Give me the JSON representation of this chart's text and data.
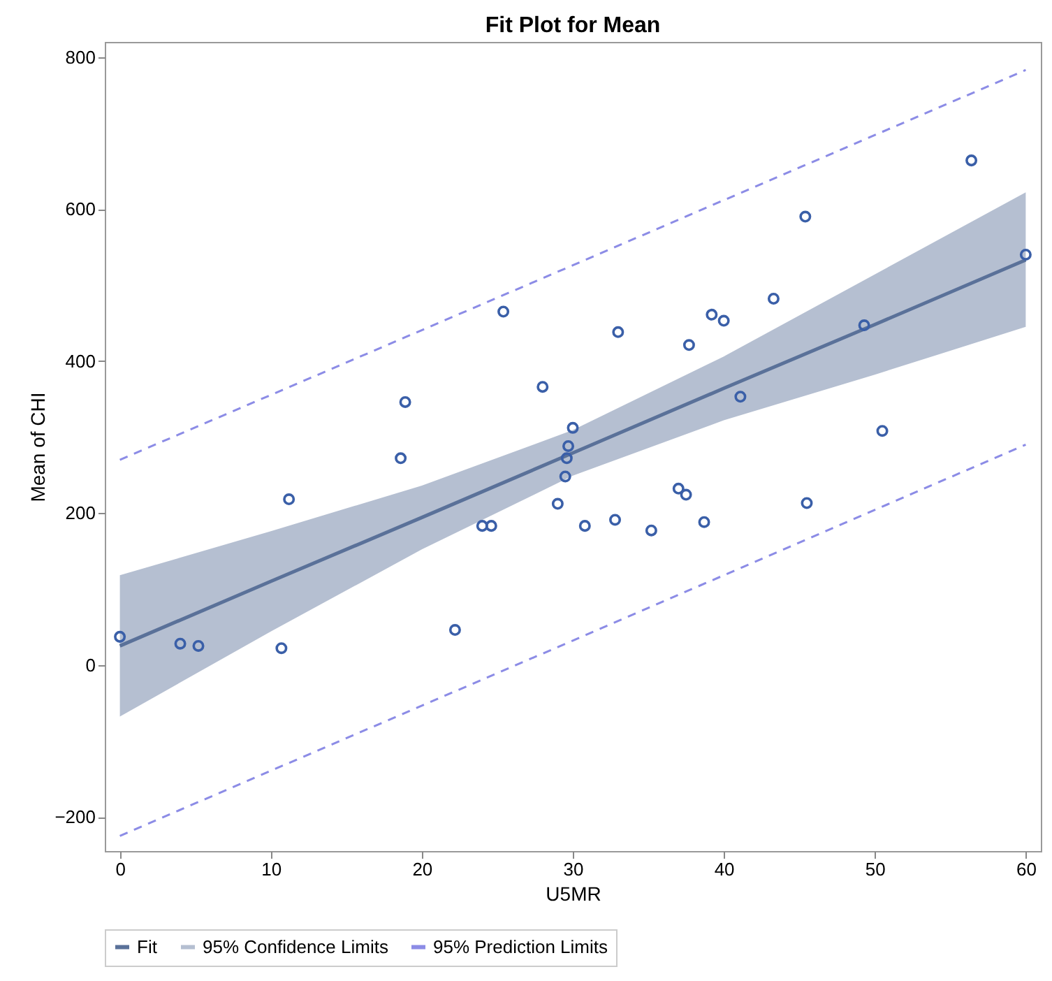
{
  "chart_data": {
    "type": "scatter",
    "title": "Fit Plot for Mean",
    "xlabel": "U5MR",
    "ylabel": "Mean of CHI",
    "xlim": [
      -1,
      61
    ],
    "ylim": [
      -245,
      820
    ],
    "xticks": [
      0,
      10,
      20,
      30,
      40,
      50,
      60
    ],
    "yticks": [
      -200,
      0,
      200,
      400,
      600,
      800
    ],
    "grid": false,
    "legend": "bottom",
    "marker": "circle",
    "annotations": [
      "95% Confidence Limits"
    ],
    "series": [
      {
        "name": "Fit",
        "type": "line",
        "line_style": "solid",
        "marker": "none",
        "color": "#5a7199",
        "x": [
          0,
          10,
          20,
          30,
          40,
          50,
          60
        ],
        "values": [
          25,
          110,
          194,
          279,
          364,
          448,
          533
        ],
        "lower": [
          -68,
          44,
          152,
          249,
          322,
          382,
          445
        ],
        "upper": [
          118,
          176,
          236,
          309,
          406,
          514,
          622
        ]
      },
      {
        "name": "95% Prediction Limits",
        "type": "line",
        "line_style": "dashed",
        "marker": "none",
        "color": "#8c8ce6",
        "x": [
          0,
          30,
          60
        ],
        "values": [
          270,
          526,
          783
        ]
      },
      {
        "type": "line",
        "line_style": "dashed",
        "marker": "none",
        "color": "#8c8ce6",
        "x": [
          0,
          30,
          60
        ],
        "values": [
          -225,
          32,
          290
        ]
      },
      {
        "color": "#3a5fa8",
        "x": [
          0,
          4,
          5.2,
          10.7,
          11.2,
          18.6,
          18.9,
          22.2,
          24,
          24.6,
          25.4,
          28,
          29,
          29.5,
          29.6,
          29.7,
          30,
          30.8,
          32.8,
          33,
          35.2,
          37,
          37.5,
          37.7,
          38.7,
          39.2,
          40,
          41.1,
          43.3,
          45.4,
          45.5,
          49.3,
          50.5,
          56.4,
          60
        ],
        "values": [
          37,
          28,
          25,
          22,
          218,
          272,
          346,
          46,
          183,
          183,
          465,
          366,
          212,
          248,
          272,
          288,
          312,
          183,
          191,
          438,
          177,
          232,
          224,
          421,
          188,
          461,
          453,
          353,
          482,
          590,
          213,
          447,
          308,
          664,
          540
        ]
      }
    ]
  }
}
